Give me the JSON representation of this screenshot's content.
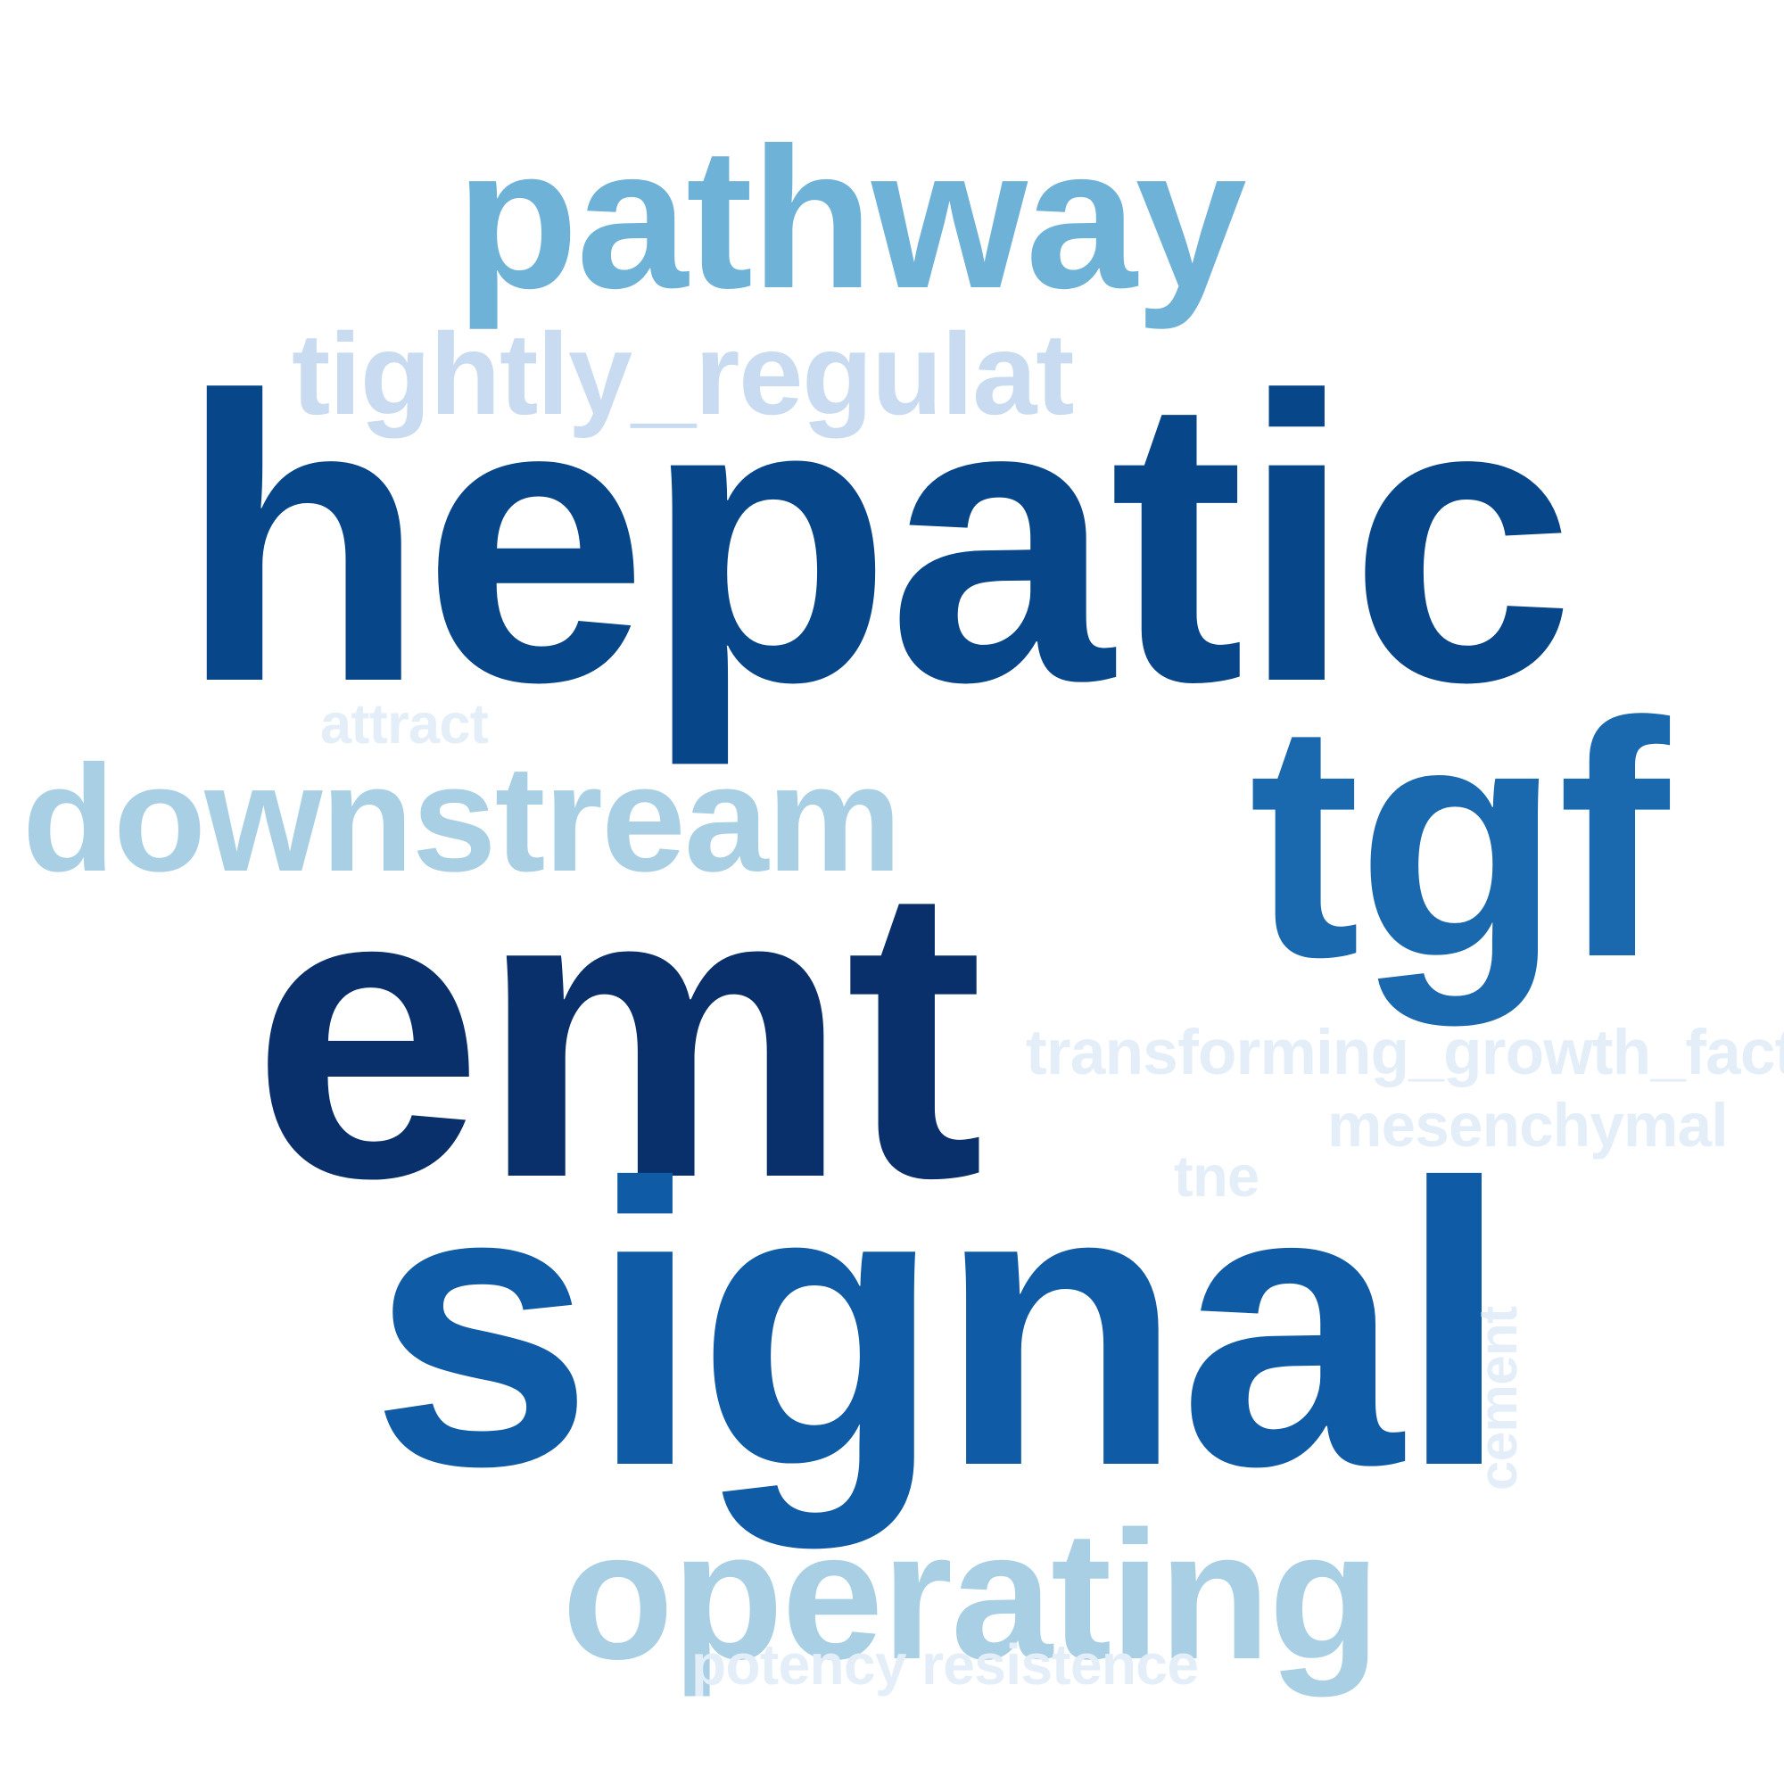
{
  "words": [
    {
      "text": "pathway",
      "color": "#6fb2d8"
    },
    {
      "text": "tightly_regulat",
      "color": "#c8dbf0"
    },
    {
      "text": "hepatic",
      "color": "#08468a"
    },
    {
      "text": "attract",
      "color": "#e3eef9"
    },
    {
      "text": "tgf",
      "color": "#1a68ae"
    },
    {
      "text": "downstream",
      "color": "#a9cfe5"
    },
    {
      "text": "emt",
      "color": "#0a306b"
    },
    {
      "text": "transforming_growth_factor",
      "color": "#e3eef9"
    },
    {
      "text": "mesenchymal",
      "color": "#e3eef9"
    },
    {
      "text": "tne",
      "color": "#e3eef9"
    },
    {
      "text": "signal",
      "color": "#105ba6"
    },
    {
      "text": "cement",
      "color": "#e3eef9"
    },
    {
      "text": "operating",
      "color": "#a9cfe5"
    },
    {
      "text": "potency resistence",
      "color": "#e3eef9"
    }
  ]
}
